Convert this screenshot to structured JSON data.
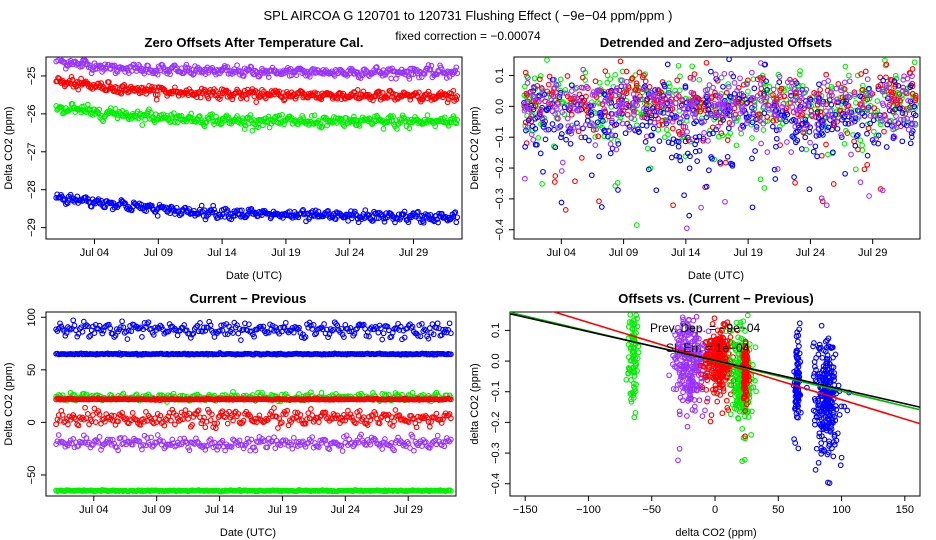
{
  "header": {
    "title": "SPL    AIRCOA G    120701 to 120731    Flushing Effect ( −9e−04 ppm/ppm )",
    "subtitle": "fixed correction = −0.00074"
  },
  "colors": {
    "purple": "#9933ff",
    "red": "#ff0000",
    "green": "#00ee00",
    "blue": "#0000ff",
    "black": "#000000",
    "ref_line": "#00bb00"
  },
  "chart_data": [
    {
      "id": "p1",
      "type": "scatter",
      "title": "Zero Offsets After Temperature Cal.",
      "xlabel": "Date (UTC)",
      "ylabel": "Delta CO2 (ppm)",
      "xlim": [
        0.2,
        32.8
      ],
      "ylim": [
        -29.3,
        -24.5
      ],
      "x_ticks": [
        4,
        9,
        14,
        19,
        24,
        29
      ],
      "x_tick_labels": [
        "Jul 04",
        "Jul 09",
        "Jul 14",
        "Jul 19",
        "Jul 24",
        "Jul 29"
      ],
      "y_ticks": [
        -25,
        -26,
        -27,
        -28,
        -29
      ],
      "y_tick_labels": [
        "−25",
        "−26",
        "−27",
        "−28",
        "−29"
      ],
      "series": [
        {
          "name": "purple",
          "color": "#9933ff",
          "x": [
            1,
            5,
            10,
            15,
            20,
            25,
            30,
            32
          ],
          "y": [
            -24.6,
            -24.78,
            -24.85,
            -24.88,
            -24.9,
            -24.9,
            -24.9,
            -24.9
          ],
          "noise": 0.06
        },
        {
          "name": "red",
          "color": "#ff0000",
          "x": [
            1,
            5,
            10,
            15,
            20,
            25,
            30,
            32
          ],
          "y": [
            -25.15,
            -25.3,
            -25.42,
            -25.48,
            -25.5,
            -25.52,
            -25.55,
            -25.55
          ],
          "noise": 0.06
        },
        {
          "name": "green",
          "color": "#00ee00",
          "x": [
            1,
            5,
            10,
            15,
            20,
            25,
            30,
            32
          ],
          "y": [
            -25.85,
            -25.98,
            -26.1,
            -26.18,
            -26.2,
            -26.2,
            -26.2,
            -26.2
          ],
          "noise": 0.07
        },
        {
          "name": "blue",
          "color": "#0000ff",
          "x": [
            1,
            5,
            10,
            15,
            20,
            25,
            30,
            32
          ],
          "y": [
            -28.2,
            -28.35,
            -28.55,
            -28.62,
            -28.68,
            -28.7,
            -28.72,
            -28.75
          ],
          "noise": 0.06
        }
      ]
    },
    {
      "id": "p2",
      "type": "scatter",
      "title": "Detrended and Zero−adjusted Offsets",
      "xlabel": "Date (UTC)",
      "ylabel": "Delta CO2 (ppm)",
      "xlim": [
        0.2,
        32.8
      ],
      "ylim": [
        -0.43,
        0.16
      ],
      "x_ticks": [
        4,
        9,
        14,
        19,
        24,
        29
      ],
      "x_tick_labels": [
        "Jul 04",
        "Jul 09",
        "Jul 14",
        "Jul 19",
        "Jul 24",
        "Jul 29"
      ],
      "y_ticks": [
        0.1,
        0.0,
        -0.1,
        -0.2,
        -0.3,
        -0.4
      ],
      "y_tick_labels": [
        "0.1",
        "0.0",
        "−0.1",
        "−0.2",
        "−0.3",
        "−0.4"
      ],
      "series": [
        {
          "name": "green",
          "color": "#00ee00",
          "center": 0.0,
          "spread": 0.06
        },
        {
          "name": "red",
          "color": "#ff0000",
          "center": 0.01,
          "spread": 0.05
        },
        {
          "name": "blue",
          "color": "#0000ff",
          "center": -0.04,
          "spread": 0.07
        },
        {
          "name": "purple",
          "color": "#9933ff",
          "center": 0.0,
          "spread": 0.05
        }
      ]
    },
    {
      "id": "p3",
      "type": "scatter",
      "title": "Current − Previous",
      "xlabel": "Date (UTC)",
      "ylabel": "Delta CO2 (ppm)",
      "xlim": [
        0.2,
        32.8
      ],
      "ylim": [
        -70,
        105
      ],
      "x_ticks": [
        4,
        9,
        14,
        19,
        24,
        29
      ],
      "x_tick_labels": [
        "Jul 04",
        "Jul 09",
        "Jul 14",
        "Jul 19",
        "Jul 24",
        "Jul 29"
      ],
      "y_ticks": [
        100,
        50,
        0,
        -50
      ],
      "y_tick_labels": [
        "100",
        "50",
        "0",
        "−50"
      ],
      "series": [
        {
          "name": "blue",
          "color": "#0000ff",
          "level": 88,
          "noise": 3
        },
        {
          "name": "blue-const",
          "color": "#0000ff",
          "level": 65,
          "noise": 0.3
        },
        {
          "name": "green",
          "color": "#00ee00",
          "level": 24,
          "noise": 1.5
        },
        {
          "name": "red-const",
          "color": "#ff0000",
          "level": 22,
          "noise": 0.3
        },
        {
          "name": "red",
          "color": "#ff0000",
          "level": 4,
          "noise": 3
        },
        {
          "name": "purple",
          "color": "#9933ff",
          "level": -20,
          "noise": 2.5
        },
        {
          "name": "green-const",
          "color": "#00ee00",
          "level": -65,
          "noise": 0.3
        }
      ]
    },
    {
      "id": "p4",
      "type": "scatter",
      "title": "Offsets vs. (Current − Previous)",
      "xlabel": "delta CO2 (ppm)",
      "ylabel": "delta CO2 (ppm)",
      "xlim": [
        -162,
        162
      ],
      "ylim": [
        -0.44,
        0.16
      ],
      "x_ticks": [
        -150,
        -100,
        -50,
        0,
        50,
        100,
        150
      ],
      "x_tick_labels": [
        "−150",
        "−100",
        "−50",
        "0",
        "50",
        "100",
        "150"
      ],
      "y_ticks": [
        0.1,
        0.0,
        -0.1,
        -0.2,
        -0.3,
        -0.4
      ],
      "y_tick_labels": [
        "0.1",
        "0.0",
        "−0.1",
        "−0.2",
        "−0.3",
        "−0.4"
      ],
      "annotations": [
        "Prev. Dep. =  −9e−04",
        "Sl. Err.  =  1e−04"
      ],
      "clusters": [
        {
          "color": "#00ee00",
          "x": -65,
          "xspread": 2,
          "center": 0.02,
          "spread": 0.09
        },
        {
          "color": "#9933ff",
          "x": -20,
          "xspread": 6,
          "center": 0.0,
          "spread": 0.07
        },
        {
          "color": "#ff0000",
          "x": 3,
          "xspread": 6,
          "center": 0.0,
          "spread": 0.05
        },
        {
          "color": "#00ee00",
          "x": 22,
          "xspread": 4,
          "center": -0.05,
          "spread": 0.07
        },
        {
          "color": "#ff0000",
          "x": 24,
          "xspread": 1,
          "center": -0.03,
          "spread": 0.05
        },
        {
          "color": "#0000ff",
          "x": 65,
          "xspread": 1,
          "center": -0.08,
          "spread": 0.07
        },
        {
          "color": "#0000ff",
          "x": 88,
          "xspread": 5,
          "center": -0.11,
          "spread": 0.09
        }
      ],
      "fit_lines": [
        {
          "name": "red-fit",
          "color": "#ff0000",
          "slope": -0.00126,
          "intercept": 0.0
        },
        {
          "name": "green-fit",
          "color": "#00bb00",
          "slope": -0.00098,
          "intercept": 0.0
        },
        {
          "name": "black-fit",
          "color": "#000000",
          "slope": -0.00094,
          "intercept": 0.002
        }
      ]
    }
  ]
}
